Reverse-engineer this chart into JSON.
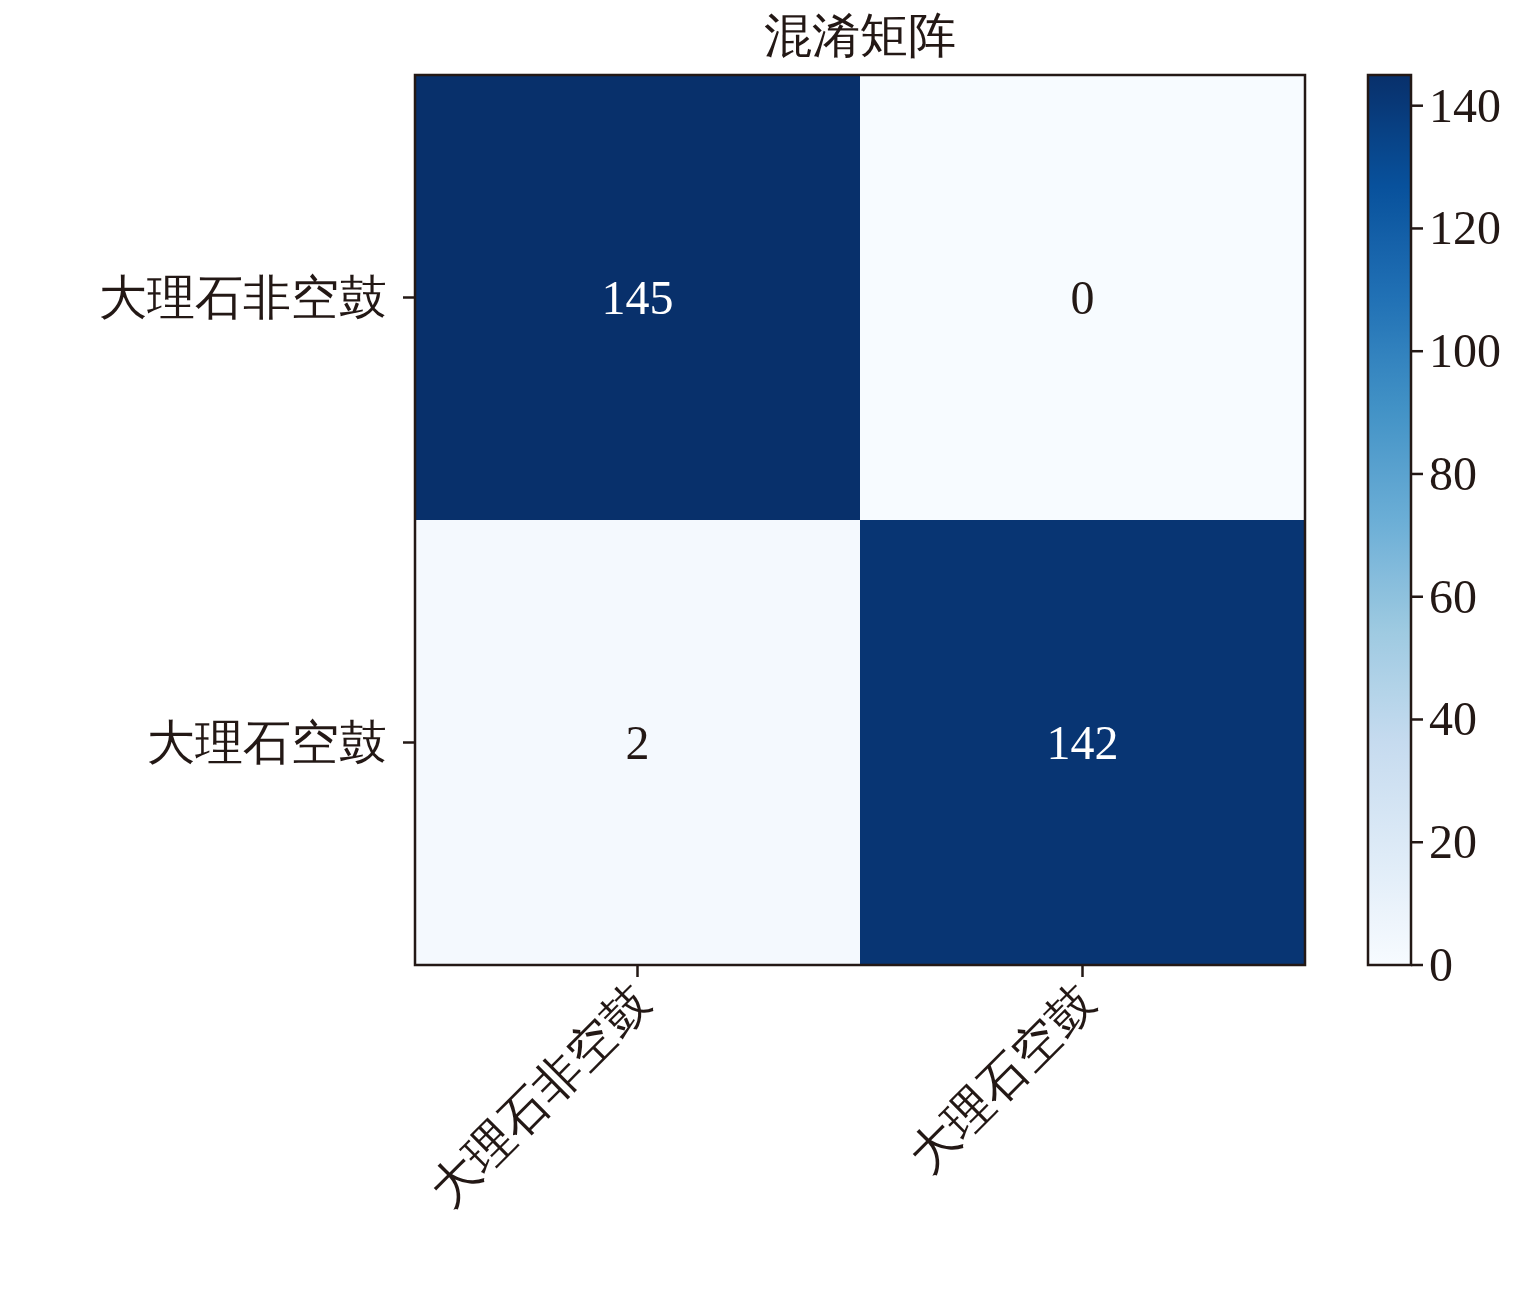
{
  "chart_data": {
    "type": "heatmap",
    "title": "混淆矩阵",
    "categories": [
      "大理石非空鼓",
      "大理石空鼓"
    ],
    "y_categories": [
      "大理石非空鼓",
      "大理石空鼓"
    ],
    "cells": [
      [
        145,
        0
      ],
      [
        2,
        142
      ]
    ],
    "data_labels": true,
    "clim": [
      0,
      145
    ],
    "cticks": [
      0,
      20,
      40,
      60,
      80,
      100,
      120,
      140
    ]
  }
}
